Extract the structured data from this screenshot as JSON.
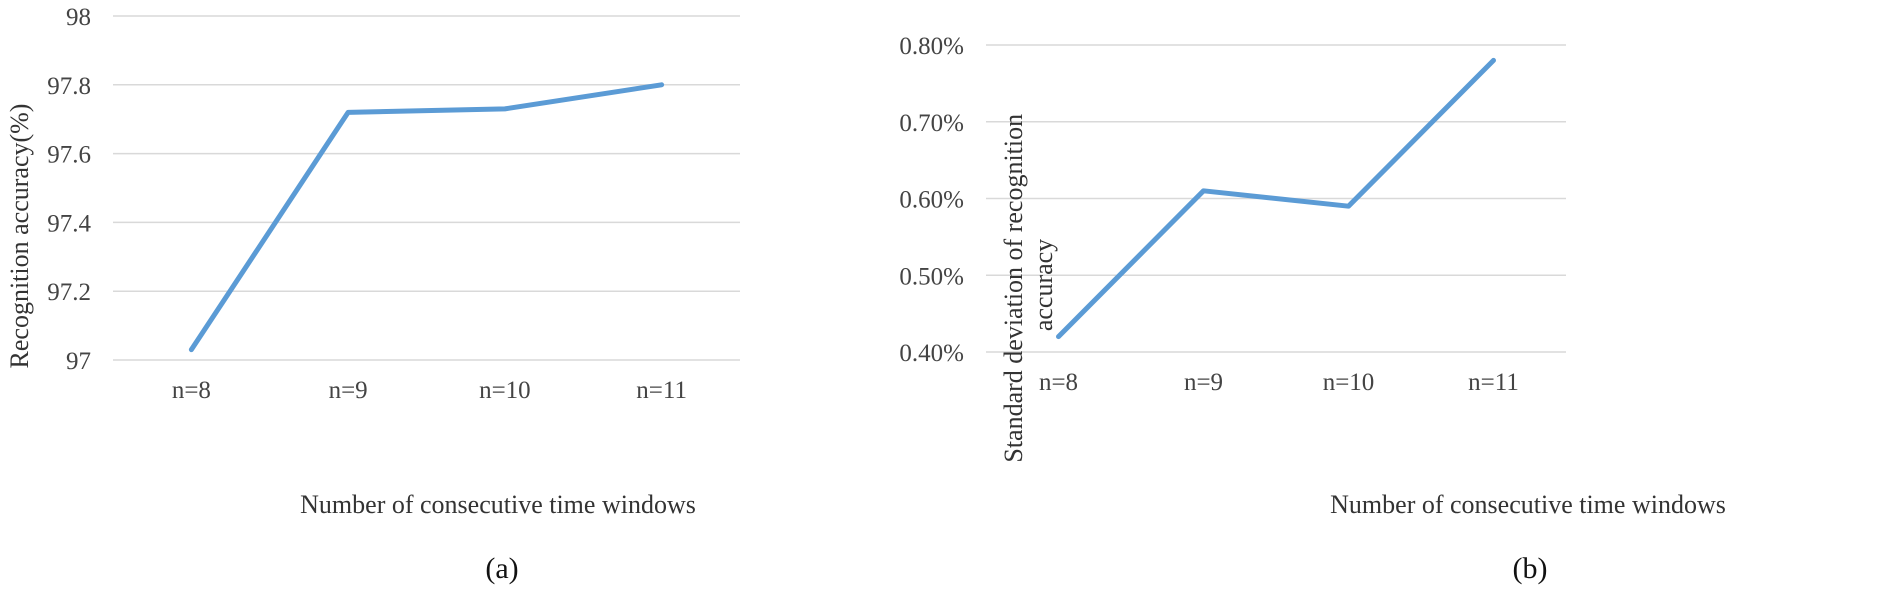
{
  "chart_data": [
    {
      "type": "line",
      "panel_label": "(a)",
      "xlabel": "Number of consecutive time windows",
      "ylabel": "Recognition accuracy(%)",
      "categories": [
        "n=8",
        "n=9",
        "n=10",
        "n=11"
      ],
      "series": [
        {
          "values": [
            97.03,
            97.72,
            97.73,
            97.8
          ]
        }
      ],
      "ylim": [
        97,
        98
      ],
      "yticks": [
        "97",
        "97.2",
        "97.4",
        "97.6",
        "97.8",
        "98"
      ],
      "grid": true,
      "legend": "none",
      "color": "#5b9bd5"
    },
    {
      "type": "line",
      "panel_label": "(b)",
      "xlabel": "Number of consecutive time windows",
      "ylabel": [
        "Standard deviation of recognition",
        "accuracy"
      ],
      "categories": [
        "n=8",
        "n=9",
        "n=10",
        "n=11"
      ],
      "series": [
        {
          "values": [
            0.42,
            0.61,
            0.59,
            0.78
          ]
        }
      ],
      "ylim": [
        0.4,
        0.8
      ],
      "yticks": [
        "0.40%",
        "0.50%",
        "0.60%",
        "0.70%",
        "0.80%"
      ],
      "grid": true,
      "legend": "none",
      "color": "#5b9bd5"
    }
  ]
}
